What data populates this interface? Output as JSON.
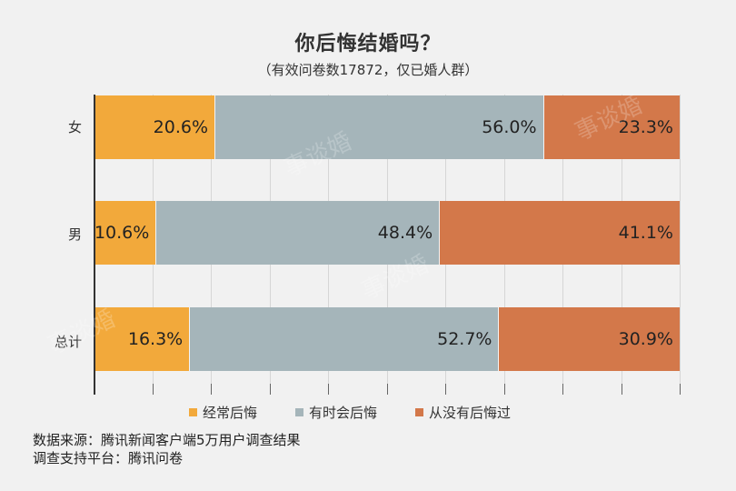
{
  "header": {
    "title": "你后悔结婚吗？",
    "subtitle": "（有效问卷数17872，仅已婚人群）"
  },
  "colors": {
    "often_regret": "#f2a93b",
    "sometimes_regret": "#a5b5ba",
    "never_regret": "#d3784a",
    "background": "#f1f1f1"
  },
  "categories": [
    {
      "label": "女",
      "values": [
        20.6,
        56.0,
        23.3
      ],
      "labels": [
        "20.6%",
        "56.0%",
        "23.3%"
      ]
    },
    {
      "label": "男",
      "values": [
        10.6,
        48.4,
        41.1
      ],
      "labels": [
        "10.6%",
        "48.4%",
        "41.1%"
      ]
    },
    {
      "label": "总计",
      "values": [
        16.3,
        52.7,
        30.9
      ],
      "labels": [
        "16.3%",
        "52.7%",
        "30.9%"
      ]
    }
  ],
  "legend": [
    {
      "label": "经常后悔",
      "color": "#f2a93b"
    },
    {
      "label": "有时会后悔",
      "color": "#a5b5ba"
    },
    {
      "label": "从没有后悔过",
      "color": "#d3784a"
    }
  ],
  "footer": {
    "source": "数据来源：腾讯新闻客户端5万用户调查结果",
    "platform": "调查支持平台：腾讯问卷"
  },
  "watermark": "事谈婚",
  "chart_data": {
    "type": "bar",
    "orientation": "horizontal",
    "stacked": true,
    "title": "你后悔结婚吗？",
    "subtitle": "（有效问卷数17872，仅已婚人群）",
    "categories": [
      "女",
      "男",
      "总计"
    ],
    "series": [
      {
        "name": "经常后悔",
        "values": [
          20.6,
          10.6,
          16.3
        ]
      },
      {
        "name": "有时会后悔",
        "values": [
          56.0,
          48.4,
          52.7
        ]
      },
      {
        "name": "从没有后悔过",
        "values": [
          23.3,
          41.1,
          30.9
        ]
      }
    ],
    "xlabel": "",
    "ylabel": "",
    "xlim": [
      0,
      100
    ],
    "grid": true,
    "grid_divisions": 10,
    "legend_position": "bottom",
    "value_format": "percent",
    "annotations": [
      "数据来源：腾讯新闻客户端5万用户调查结果",
      "调查支持平台：腾讯问卷"
    ]
  }
}
